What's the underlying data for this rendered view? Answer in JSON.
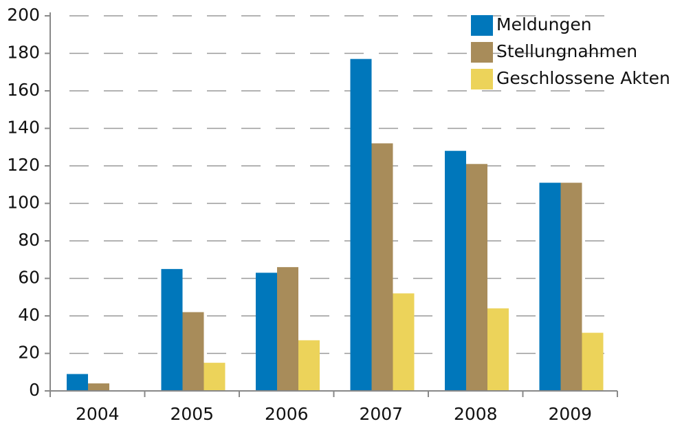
{
  "chart_data": {
    "type": "bar",
    "categories": [
      "2004",
      "2005",
      "2006",
      "2007",
      "2008",
      "2009"
    ],
    "series": [
      {
        "name": "Meldungen",
        "color": "#0077bb",
        "values": [
          9,
          65,
          63,
          177,
          128,
          111
        ]
      },
      {
        "name": "Stellungnahmen",
        "color": "#a88c5a",
        "values": [
          4,
          42,
          66,
          132,
          121,
          111
        ]
      },
      {
        "name": "Geschlossene Akten",
        "color": "#ecd35a",
        "values": [
          0,
          15,
          27,
          52,
          44,
          31
        ]
      }
    ],
    "ylim": [
      0,
      200
    ],
    "yticks": [
      0,
      20,
      40,
      60,
      80,
      100,
      120,
      140,
      160,
      180,
      200
    ],
    "grid": true,
    "legend": "top-right"
  }
}
